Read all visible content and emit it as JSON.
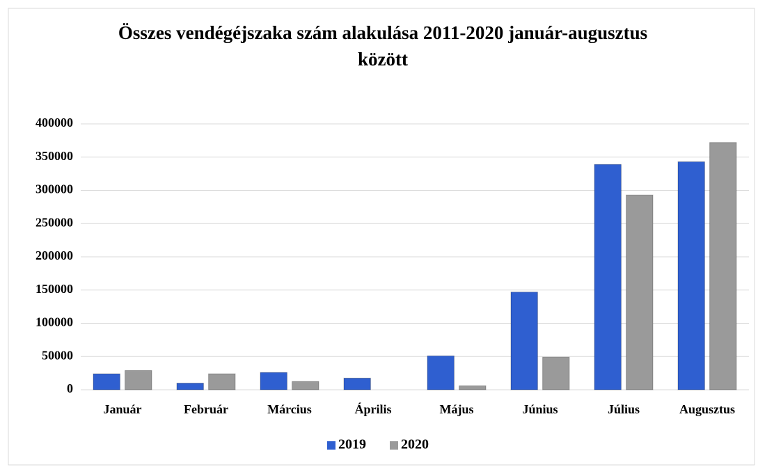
{
  "chart_data": {
    "type": "bar",
    "title": "Összes vendégéjszaka szám alakulása 2011-2020 január-augusztus között",
    "categories": [
      "Január",
      "Február",
      "Március",
      "Április",
      "Május",
      "Június",
      "Július",
      "Augusztus"
    ],
    "series": [
      {
        "name": "2019",
        "color": "#2f5fd0",
        "values": [
          24000,
          10000,
          26000,
          17500,
          51000,
          147000,
          339000,
          343000
        ]
      },
      {
        "name": "2020",
        "color": "#9a9a9a",
        "values": [
          29000,
          24000,
          12500,
          0,
          6000,
          49000,
          293000,
          372000
        ]
      }
    ],
    "ylim": [
      0,
      400000
    ],
    "yticks": [
      0,
      50000,
      100000,
      150000,
      200000,
      250000,
      300000,
      350000,
      400000
    ],
    "grid": true,
    "legend": "bottom"
  }
}
